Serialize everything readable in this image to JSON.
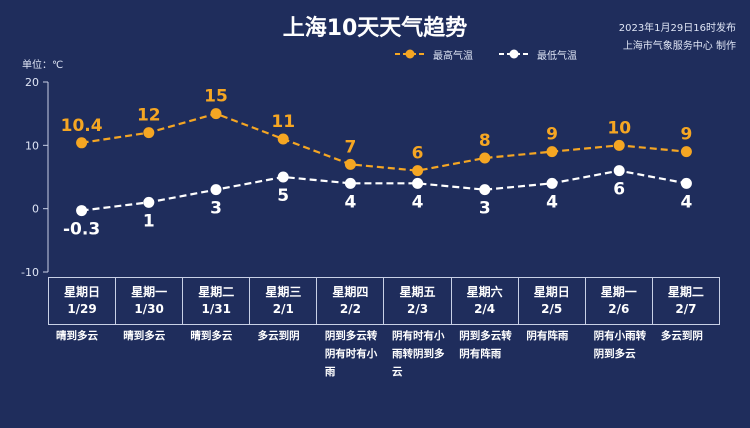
{
  "title": "上海10天天气趋势",
  "publish": {
    "time": "2023年1月29日16时发布",
    "source": "上海市气象服务中心 制作"
  },
  "unit_label": "单位：℃",
  "legend": {
    "high": "最高气温",
    "low": "最低气温"
  },
  "colors": {
    "background": "#1f2d5c",
    "high_line": "#f5a623",
    "low_line": "#ffffff"
  },
  "days": [
    {
      "weekday": "星期日",
      "date": "1/29",
      "weather": "晴到多云"
    },
    {
      "weekday": "星期一",
      "date": "1/30",
      "weather": "晴到多云"
    },
    {
      "weekday": "星期二",
      "date": "1/31",
      "weather": "晴到多云"
    },
    {
      "weekday": "星期三",
      "date": "2/1",
      "weather": "多云到阴"
    },
    {
      "weekday": "星期四",
      "date": "2/2",
      "weather": "阴到多云转阴有时有小雨"
    },
    {
      "weekday": "星期五",
      "date": "2/3",
      "weather": "阴有时有小雨转阴到多云"
    },
    {
      "weekday": "星期六",
      "date": "2/4",
      "weather": "阴到多云转阴有阵雨"
    },
    {
      "weekday": "星期日",
      "date": "2/5",
      "weather": "阴有阵雨"
    },
    {
      "weekday": "星期一",
      "date": "2/6",
      "weather": "阴有小雨转阴到多云"
    },
    {
      "weekday": "星期二",
      "date": "2/7",
      "weather": "多云到阴"
    }
  ],
  "chart_data": {
    "type": "line",
    "categories": [
      "1/29",
      "1/30",
      "1/31",
      "2/1",
      "2/2",
      "2/3",
      "2/4",
      "2/5",
      "2/6",
      "2/7"
    ],
    "series": [
      {
        "name": "最高气温",
        "values": [
          10.4,
          12,
          15,
          11,
          7,
          6,
          8,
          9,
          10,
          9
        ],
        "color": "#f5a623",
        "labels": [
          "10.4",
          "12",
          "15",
          "11",
          "7",
          "6",
          "8",
          "9",
          "10",
          "9"
        ]
      },
      {
        "name": "最低气温",
        "values": [
          -0.3,
          1,
          3,
          5,
          4,
          4,
          3,
          4,
          6,
          4
        ],
        "color": "#ffffff",
        "labels": [
          "-0.3",
          "1",
          "3",
          "5",
          "4",
          "4",
          "3",
          "4",
          "6",
          "4"
        ]
      }
    ],
    "ylim": [
      -10,
      20
    ],
    "yticks": [
      20,
      10,
      0,
      -10
    ],
    "ylabel": "单位：℃",
    "line_style": "dashed",
    "grid": false
  }
}
